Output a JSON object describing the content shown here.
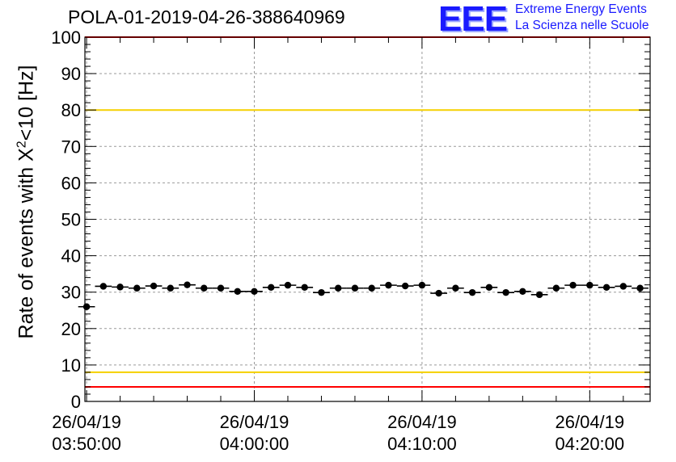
{
  "title": "POLA-01-2019-04-26-388640969",
  "logo": {
    "mark": "EEE",
    "line1": "Extreme Energy Events",
    "line2": "La Scienza nelle Scuole"
  },
  "chart_data": {
    "type": "scatter",
    "title": "POLA-01-2019-04-26-388640969",
    "xlabel": "",
    "ylabel": "Rate of events with X²<10 [Hz]",
    "ylabel_prefix": "Rate of events with X",
    "ylabel_sup": "2",
    "ylabel_suffix": "<10 [Hz]",
    "ylim": [
      0,
      100
    ],
    "y_ticks": [
      0,
      10,
      20,
      30,
      40,
      50,
      60,
      70,
      80,
      90,
      100
    ],
    "x_ticks": [
      {
        "date": "26/04/19",
        "time": "03:50:00",
        "minutes": 0
      },
      {
        "date": "26/04/19",
        "time": "04:00:00",
        "minutes": 10
      },
      {
        "date": "26/04/19",
        "time": "04:10:00",
        "minutes": 20
      },
      {
        "date": "26/04/19",
        "time": "04:20:00",
        "minutes": 30
      }
    ],
    "xlim_minutes": [
      -0.1,
      33.6
    ],
    "grid": true,
    "points": [
      {
        "t_minutes": 0.0,
        "rate": 26.0
      },
      {
        "t_minutes": 1.0,
        "rate": 31.6
      },
      {
        "t_minutes": 2.0,
        "rate": 31.4
      },
      {
        "t_minutes": 3.0,
        "rate": 31.1
      },
      {
        "t_minutes": 4.0,
        "rate": 31.7
      },
      {
        "t_minutes": 5.0,
        "rate": 31.1
      },
      {
        "t_minutes": 6.0,
        "rate": 32.0
      },
      {
        "t_minutes": 7.0,
        "rate": 31.1
      },
      {
        "t_minutes": 8.0,
        "rate": 31.1
      },
      {
        "t_minutes": 9.0,
        "rate": 30.2
      },
      {
        "t_minutes": 10.0,
        "rate": 30.2
      },
      {
        "t_minutes": 11.0,
        "rate": 31.3
      },
      {
        "t_minutes": 12.0,
        "rate": 31.9
      },
      {
        "t_minutes": 13.0,
        "rate": 31.3
      },
      {
        "t_minutes": 14.0,
        "rate": 29.9
      },
      {
        "t_minutes": 15.0,
        "rate": 31.1
      },
      {
        "t_minutes": 16.0,
        "rate": 31.1
      },
      {
        "t_minutes": 17.0,
        "rate": 31.1
      },
      {
        "t_minutes": 18.0,
        "rate": 31.9
      },
      {
        "t_minutes": 19.0,
        "rate": 31.7
      },
      {
        "t_minutes": 20.0,
        "rate": 31.9
      },
      {
        "t_minutes": 21.0,
        "rate": 29.7
      },
      {
        "t_minutes": 22.0,
        "rate": 31.1
      },
      {
        "t_minutes": 23.0,
        "rate": 29.9
      },
      {
        "t_minutes": 24.0,
        "rate": 31.3
      },
      {
        "t_minutes": 25.0,
        "rate": 29.9
      },
      {
        "t_minutes": 26.0,
        "rate": 30.2
      },
      {
        "t_minutes": 27.0,
        "rate": 29.3
      },
      {
        "t_minutes": 28.0,
        "rate": 31.1
      },
      {
        "t_minutes": 29.0,
        "rate": 31.9
      },
      {
        "t_minutes": 30.0,
        "rate": 31.9
      },
      {
        "t_minutes": 31.0,
        "rate": 31.3
      },
      {
        "t_minutes": 32.0,
        "rate": 31.6
      },
      {
        "t_minutes": 33.0,
        "rate": 31.1
      }
    ],
    "reference_lines": [
      {
        "value": 100,
        "color": "#ff0000"
      },
      {
        "value": 80,
        "color": "#f5d000"
      },
      {
        "value": 8,
        "color": "#f5d000"
      },
      {
        "value": 4,
        "color": "#ff0000"
      }
    ],
    "marker_color": "#000000"
  }
}
